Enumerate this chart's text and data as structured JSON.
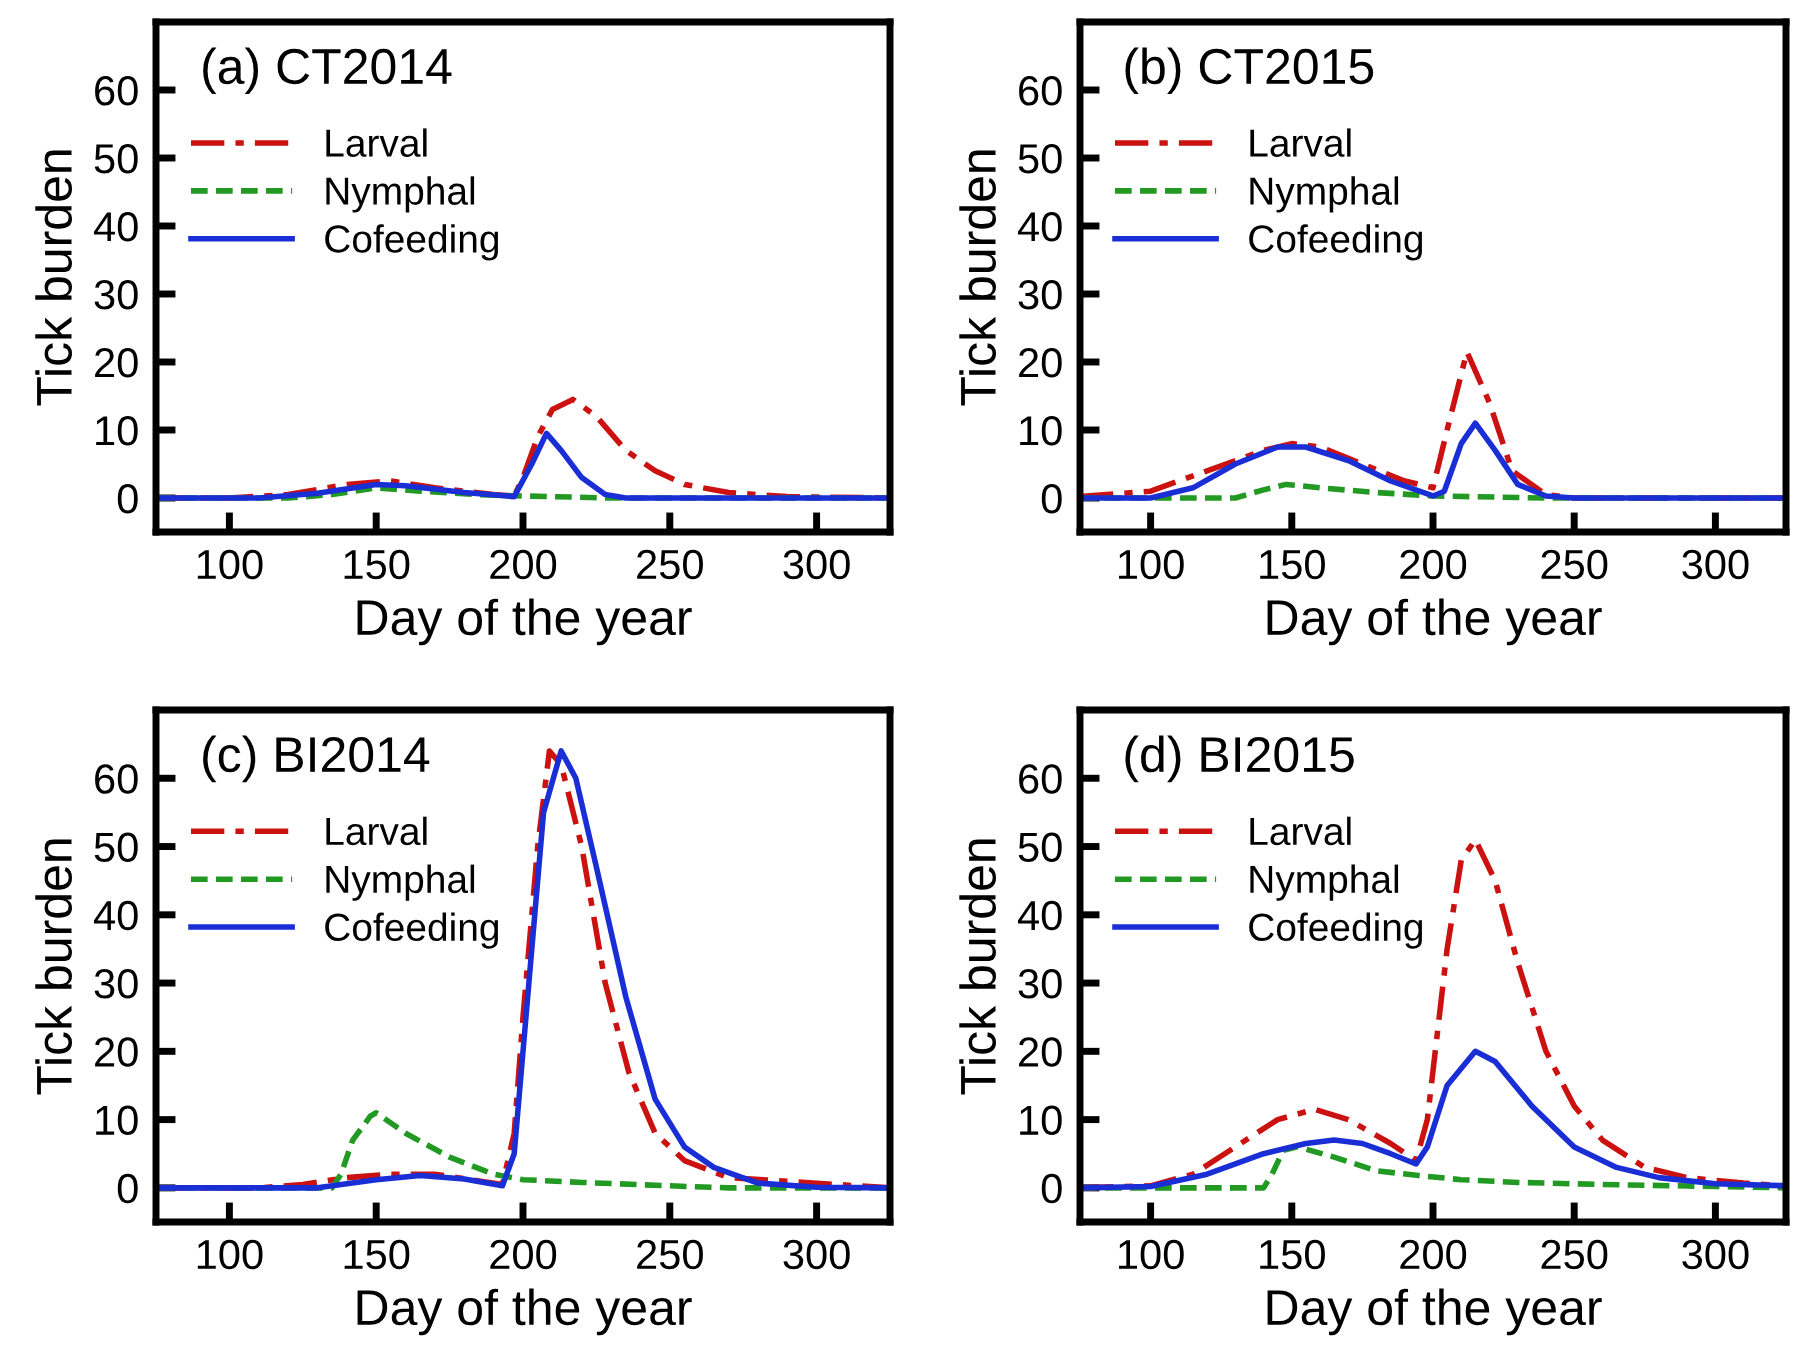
{
  "chart_data": [
    {
      "type": "line",
      "title": "(a) CT2014",
      "xlabel": "Day of the year",
      "ylabel": "Tick burden",
      "xlim": [
        75,
        325
      ],
      "ylim": [
        -5,
        70
      ],
      "xticks": [
        100,
        150,
        200,
        250,
        300
      ],
      "yticks": [
        0,
        10,
        20,
        30,
        40,
        50,
        60
      ],
      "legend": "top left",
      "series": [
        {
          "name": "Larval",
          "color": "#cc1111",
          "line_style": "dashdot",
          "x": [
            75,
            100,
            120,
            140,
            155,
            170,
            190,
            197,
            200,
            205,
            210,
            217,
            225,
            235,
            245,
            255,
            270,
            290,
            325
          ],
          "values": [
            0,
            0,
            0.5,
            2,
            2.5,
            1.5,
            0.5,
            0.3,
            3,
            9,
            13,
            14.5,
            12,
            7,
            4,
            2,
            0.8,
            0.2,
            0
          ]
        },
        {
          "name": "Nymphal",
          "color": "#229922",
          "line_style": "dashed",
          "x": [
            75,
            120,
            135,
            150,
            165,
            185,
            200,
            230,
            325
          ],
          "values": [
            0,
            0,
            0.5,
            1.5,
            1,
            0.5,
            0.3,
            0,
            0
          ]
        },
        {
          "name": "Cofeeding",
          "color": "#1a2ed6",
          "line_style": "solid",
          "x": [
            75,
            110,
            130,
            150,
            160,
            180,
            197,
            203,
            208,
            213,
            220,
            228,
            235,
            325
          ],
          "values": [
            0,
            0,
            0.7,
            2,
            1.8,
            0.8,
            0.2,
            5,
            9.5,
            7,
            3,
            0.5,
            0,
            0
          ]
        }
      ]
    },
    {
      "type": "line",
      "title": "(b) CT2015",
      "xlabel": "Day of the year",
      "ylabel": "Tick burden",
      "xlim": [
        75,
        325
      ],
      "ylim": [
        -5,
        70
      ],
      "xticks": [
        100,
        150,
        200,
        250,
        300
      ],
      "yticks": [
        0,
        10,
        20,
        30,
        40,
        50,
        60
      ],
      "legend": "top left",
      "series": [
        {
          "name": "Larval",
          "color": "#cc1111",
          "line_style": "dashdot",
          "x": [
            75,
            100,
            120,
            140,
            150,
            160,
            175,
            190,
            200,
            205,
            212,
            220,
            228,
            240,
            250,
            325
          ],
          "values": [
            0.2,
            1,
            4,
            7,
            8,
            7.5,
            5,
            2.5,
            1.5,
            10,
            21.5,
            14,
            4,
            0.5,
            0,
            0
          ]
        },
        {
          "name": "Nymphal",
          "color": "#229922",
          "line_style": "dashed",
          "x": [
            75,
            130,
            140,
            148,
            160,
            180,
            200,
            240,
            325
          ],
          "values": [
            0,
            0,
            1.2,
            2,
            1.5,
            0.8,
            0.3,
            0,
            0
          ]
        },
        {
          "name": "Cofeeding",
          "color": "#1a2ed6",
          "line_style": "solid",
          "x": [
            75,
            100,
            115,
            130,
            145,
            155,
            170,
            185,
            200,
            204,
            210,
            215,
            222,
            230,
            240,
            250,
            325
          ],
          "values": [
            0,
            0,
            1.5,
            5,
            7.5,
            7.5,
            5.5,
            2.5,
            0.3,
            1,
            8,
            11,
            7,
            2,
            0.3,
            0,
            0
          ]
        }
      ]
    },
    {
      "type": "line",
      "title": "(c) BI2014",
      "xlabel": "Day of the year",
      "ylabel": "Tick burden",
      "xlim": [
        75,
        325
      ],
      "ylim": [
        -5,
        70
      ],
      "xticks": [
        100,
        150,
        200,
        250,
        300
      ],
      "yticks": [
        0,
        10,
        20,
        30,
        40,
        50,
        60
      ],
      "legend": "top left",
      "series": [
        {
          "name": "Larval",
          "color": "#cc1111",
          "line_style": "dashdot",
          "x": [
            75,
            110,
            125,
            140,
            155,
            170,
            185,
            193,
            197,
            200,
            205,
            209,
            213,
            220,
            228,
            236,
            245,
            255,
            270,
            325
          ],
          "values": [
            0,
            0,
            0.5,
            1.5,
            2,
            2,
            1,
            0.5,
            8,
            25,
            50,
            64,
            62,
            50,
            30,
            17,
            8,
            4,
            1.5,
            0
          ]
        },
        {
          "name": "Nymphal",
          "color": "#229922",
          "line_style": "dashed",
          "x": [
            75,
            135,
            138,
            142,
            148,
            150,
            160,
            175,
            190,
            200,
            220,
            250,
            270,
            325
          ],
          "values": [
            0,
            0,
            2,
            7,
            10.5,
            11,
            8,
            4.5,
            2,
            1.2,
            0.8,
            0.3,
            0,
            0
          ]
        },
        {
          "name": "Cofeeding",
          "color": "#1a2ed6",
          "line_style": "solid",
          "x": [
            75,
            130,
            150,
            165,
            180,
            193,
            197,
            202,
            207,
            213,
            218,
            225,
            235,
            245,
            255,
            265,
            280,
            300,
            325
          ],
          "values": [
            0,
            0,
            1.2,
            1.8,
            1.3,
            0.3,
            5,
            30,
            55,
            64,
            60,
            47,
            28,
            13,
            6,
            3,
            0.7,
            0.1,
            0
          ]
        }
      ]
    },
    {
      "type": "line",
      "title": "(d) BI2015",
      "xlabel": "Day of the year",
      "ylabel": "Tick burden",
      "xlim": [
        75,
        325
      ],
      "ylim": [
        -5,
        70
      ],
      "xticks": [
        100,
        150,
        200,
        250,
        300
      ],
      "yticks": [
        0,
        10,
        20,
        30,
        40,
        50,
        60
      ],
      "legend": "top left",
      "series": [
        {
          "name": "Larval",
          "color": "#cc1111",
          "line_style": "dashdot",
          "x": [
            75,
            100,
            115,
            130,
            145,
            158,
            170,
            185,
            194,
            198,
            205,
            210,
            215,
            222,
            230,
            240,
            250,
            260,
            275,
            290,
            310,
            325
          ],
          "values": [
            0,
            0.3,
            2,
            6,
            10,
            11.5,
            10,
            6.5,
            4,
            10,
            35,
            48,
            51,
            45,
            33,
            20,
            12,
            7,
            3,
            1.5,
            0.7,
            0.3
          ]
        },
        {
          "name": "Nymphal",
          "color": "#229922",
          "line_style": "dashed",
          "x": [
            75,
            140,
            143,
            147,
            152,
            165,
            180,
            195,
            210,
            230,
            260,
            300,
            325
          ],
          "values": [
            0,
            0,
            2,
            5.5,
            6,
            4.5,
            2.5,
            1.8,
            1.2,
            0.8,
            0.5,
            0.2,
            0
          ]
        },
        {
          "name": "Cofeeding",
          "color": "#1a2ed6",
          "line_style": "solid",
          "x": [
            75,
            100,
            120,
            140,
            155,
            165,
            175,
            185,
            194,
            198,
            205,
            215,
            222,
            235,
            250,
            265,
            280,
            300,
            325
          ],
          "values": [
            0,
            0.2,
            2,
            5,
            6.5,
            7,
            6.5,
            5,
            3.5,
            6,
            15,
            20,
            18.5,
            12,
            6,
            3,
            1.5,
            0.6,
            0.3
          ]
        }
      ]
    }
  ]
}
